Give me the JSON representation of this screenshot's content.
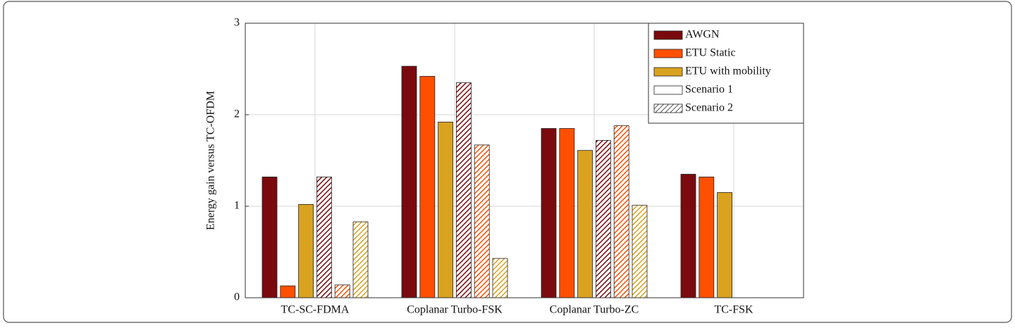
{
  "chart_data": {
    "type": "bar",
    "ylabel": "Energy gain versus TC-OFDM",
    "categories": [
      "TC-SC-FDMA",
      "Coplanar Turbo-FSK",
      "Coplanar Turbo-ZC",
      "TC-FSK"
    ],
    "scenarios": [
      {
        "name": "Scenario 1",
        "pattern": "solid"
      },
      {
        "name": "Scenario 2",
        "pattern": "hatched"
      }
    ],
    "series": [
      {
        "name": "AWGN",
        "color": "#7a0a0d",
        "values": [
          [
            1.32,
            2.53,
            1.85,
            1.35
          ],
          [
            1.32,
            2.35,
            1.72,
            null
          ]
        ]
      },
      {
        "name": "ETU Static",
        "color": "#ff4f00",
        "values": [
          [
            0.13,
            2.42,
            1.85,
            1.32
          ],
          [
            0.14,
            1.67,
            1.88,
            null
          ]
        ]
      },
      {
        "name": "ETU with mobility",
        "color": "#d9a21f",
        "values": [
          [
            1.02,
            1.92,
            1.61,
            1.15
          ],
          [
            0.83,
            0.43,
            1.01,
            null
          ]
        ]
      }
    ],
    "ylim": [
      0,
      3
    ],
    "yticks": [
      0,
      1,
      2,
      3
    ],
    "grid": true,
    "legend": "upper right"
  }
}
